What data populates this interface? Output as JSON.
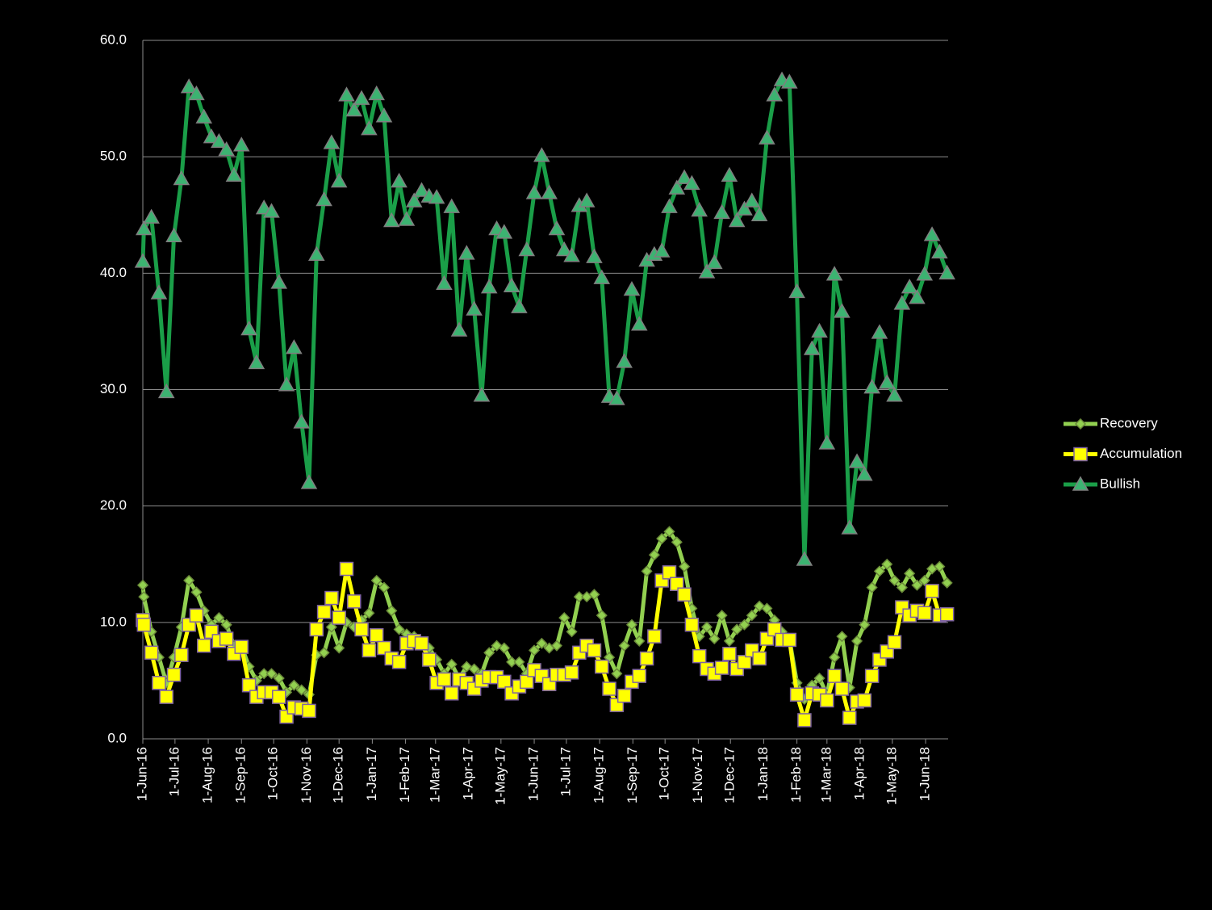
{
  "chart_data": {
    "type": "line",
    "x": [
      "2016-06-01",
      "2016-06-02",
      "2016-06-09",
      "2016-06-16",
      "2016-06-23",
      "2016-06-30",
      "2016-07-07",
      "2016-07-14",
      "2016-07-21",
      "2016-07-28",
      "2016-08-04",
      "2016-08-11",
      "2016-08-18",
      "2016-08-25",
      "2016-09-01",
      "2016-09-08",
      "2016-09-15",
      "2016-09-22",
      "2016-09-29",
      "2016-10-06",
      "2016-10-13",
      "2016-10-20",
      "2016-10-27",
      "2016-11-03",
      "2016-11-10",
      "2016-11-17",
      "2016-11-24",
      "2016-12-01",
      "2016-12-08",
      "2016-12-15",
      "2016-12-22",
      "2016-12-29",
      "2017-01-05",
      "2017-01-12",
      "2017-01-19",
      "2017-01-26",
      "2017-02-02",
      "2017-02-09",
      "2017-02-16",
      "2017-02-23",
      "2017-03-02",
      "2017-03-09",
      "2017-03-16",
      "2017-03-23",
      "2017-03-30",
      "2017-04-06",
      "2017-04-13",
      "2017-04-20",
      "2017-04-27",
      "2017-05-04",
      "2017-05-11",
      "2017-05-18",
      "2017-05-25",
      "2017-06-01",
      "2017-06-08",
      "2017-06-15",
      "2017-06-22",
      "2017-06-29",
      "2017-07-06",
      "2017-07-13",
      "2017-07-20",
      "2017-07-27",
      "2017-08-03",
      "2017-08-10",
      "2017-08-17",
      "2017-08-24",
      "2017-08-31",
      "2017-09-07",
      "2017-09-14",
      "2017-09-21",
      "2017-09-28",
      "2017-10-05",
      "2017-10-12",
      "2017-10-19",
      "2017-10-26",
      "2017-11-02",
      "2017-11-09",
      "2017-11-16",
      "2017-11-23",
      "2017-11-30",
      "2017-12-07",
      "2017-12-14",
      "2017-12-21",
      "2017-12-28",
      "2018-01-04",
      "2018-01-11",
      "2018-01-18",
      "2018-01-25",
      "2018-02-01",
      "2018-02-08",
      "2018-02-15",
      "2018-02-22",
      "2018-03-01",
      "2018-03-08",
      "2018-03-15",
      "2018-03-22",
      "2018-03-29",
      "2018-04-05",
      "2018-04-12",
      "2018-04-19",
      "2018-04-26",
      "2018-05-03",
      "2018-05-10",
      "2018-05-17",
      "2018-05-24",
      "2018-05-31",
      "2018-06-07",
      "2018-06-14",
      "2018-06-21"
    ],
    "series": [
      {
        "name": "Recovery",
        "color": "#92d050",
        "marker": "diamond",
        "values": [
          13.2,
          12.2,
          9.2,
          7.0,
          4.8,
          7.0,
          9.6,
          13.6,
          12.6,
          11.0,
          9.8,
          10.4,
          9.8,
          8.0,
          8.0,
          6.2,
          5.0,
          5.6,
          5.6,
          5.2,
          4.0,
          4.6,
          4.2,
          3.8,
          7.2,
          7.4,
          9.6,
          7.8,
          10.0,
          9.6,
          10.2,
          10.8,
          13.6,
          13.0,
          11.0,
          9.4,
          9.0,
          8.8,
          8.2,
          7.8,
          6.8,
          5.6,
          6.4,
          5.2,
          6.2,
          6.0,
          5.6,
          7.4,
          8.0,
          7.8,
          6.6,
          6.6,
          5.6,
          7.6,
          8.2,
          7.8,
          8.0,
          10.4,
          9.2,
          12.2,
          12.2,
          12.4,
          10.6,
          7.0,
          5.6,
          8.0,
          9.8,
          8.4,
          14.4,
          15.8,
          17.2,
          17.8,
          16.9,
          14.8,
          11.2,
          8.8,
          9.6,
          8.6,
          10.6,
          8.4,
          9.4,
          9.8,
          10.6,
          11.4,
          11.2,
          10.2,
          9.2,
          8.6,
          4.8,
          3.4,
          4.6,
          5.2,
          3.8,
          7.0,
          8.8,
          4.4,
          8.4,
          9.8,
          13.0,
          14.4,
          15.0,
          13.6,
          13.0,
          14.2,
          13.2,
          13.6,
          14.6,
          14.8,
          13.4
        ]
      },
      {
        "name": "Accumulation",
        "color": "#ffff00",
        "marker": "square",
        "values": [
          10.2,
          9.8,
          7.4,
          4.8,
          3.6,
          5.5,
          7.2,
          9.8,
          10.6,
          8.0,
          9.2,
          8.4,
          8.6,
          7.3,
          7.9,
          4.6,
          3.6,
          4.0,
          4.0,
          3.6,
          1.9,
          2.7,
          2.6,
          2.4,
          9.4,
          10.9,
          12.1,
          10.4,
          14.6,
          11.8,
          9.4,
          7.6,
          8.9,
          7.8,
          6.9,
          6.6,
          8.2,
          8.4,
          8.2,
          6.8,
          4.8,
          5.1,
          3.9,
          5.1,
          4.8,
          4.3,
          5.0,
          5.3,
          5.3,
          4.9,
          3.9,
          4.5,
          4.9,
          5.9,
          5.4,
          4.7,
          5.5,
          5.5,
          5.7,
          7.4,
          8.0,
          7.6,
          6.2,
          4.3,
          2.9,
          3.7,
          4.9,
          5.4,
          6.9,
          8.8,
          13.6,
          14.3,
          13.3,
          12.4,
          9.8,
          7.1,
          6.0,
          5.6,
          6.1,
          7.3,
          6.0,
          6.6,
          7.6,
          6.9,
          8.6,
          9.4,
          8.5,
          8.5,
          3.8,
          1.6,
          3.9,
          3.8,
          3.3,
          5.4,
          4.3,
          1.8,
          3.2,
          3.3,
          5.4,
          6.8,
          7.5,
          8.3,
          11.3,
          10.6,
          11.0,
          10.8,
          12.7,
          10.6,
          10.7
        ]
      },
      {
        "name": "Bullish",
        "color": "#1a9e48",
        "marker": "triangle",
        "values": [
          41.0,
          43.8,
          44.8,
          38.3,
          29.8,
          43.2,
          48.1,
          56.0,
          55.4,
          53.4,
          51.7,
          51.3,
          50.6,
          48.4,
          51.0,
          35.2,
          32.3,
          45.6,
          45.3,
          39.2,
          30.4,
          33.6,
          27.2,
          22.0,
          41.6,
          46.3,
          51.2,
          47.9,
          55.3,
          54.0,
          55.0,
          52.4,
          55.4,
          53.5,
          44.5,
          47.9,
          44.6,
          46.2,
          47.1,
          46.6,
          46.5,
          39.1,
          45.7,
          35.1,
          41.7,
          36.9,
          29.5,
          38.8,
          43.8,
          43.5,
          38.9,
          37.1,
          42.0,
          46.9,
          50.1,
          46.9,
          43.8,
          42.0,
          41.5,
          45.8,
          46.2,
          41.4,
          39.6,
          29.4,
          29.2,
          32.4,
          38.6,
          35.6,
          41.1,
          41.6,
          41.9,
          45.7,
          47.3,
          48.2,
          47.7,
          45.4,
          40.1,
          40.9,
          45.2,
          48.4,
          44.5,
          45.5,
          46.2,
          45.0,
          51.6,
          55.3,
          56.6,
          56.4,
          38.4,
          15.4,
          33.5,
          35.0,
          25.4,
          39.9,
          36.7,
          18.1,
          23.8,
          22.7,
          30.2,
          34.9,
          30.6,
          29.5,
          37.4,
          38.8,
          37.9,
          39.9,
          43.3,
          41.8,
          40.0
        ]
      }
    ],
    "xlim": [
      "2016-06-01",
      "2018-06-22"
    ],
    "xticks": [
      {
        "value": "2016-06-01",
        "label": "1-Jun-16"
      },
      {
        "value": "2016-07-01",
        "label": "1-Jul-16"
      },
      {
        "value": "2016-08-01",
        "label": "1-Aug-16"
      },
      {
        "value": "2016-09-01",
        "label": "1-Sep-16"
      },
      {
        "value": "2016-10-01",
        "label": "1-Oct-16"
      },
      {
        "value": "2016-11-01",
        "label": "1-Nov-16"
      },
      {
        "value": "2016-12-01",
        "label": "1-Dec-16"
      },
      {
        "value": "2017-01-01",
        "label": "1-Jan-17"
      },
      {
        "value": "2017-02-01",
        "label": "1-Feb-17"
      },
      {
        "value": "2017-03-01",
        "label": "1-Mar-17"
      },
      {
        "value": "2017-04-01",
        "label": "1-Apr-17"
      },
      {
        "value": "2017-05-01",
        "label": "1-May-17"
      },
      {
        "value": "2017-06-01",
        "label": "1-Jun-17"
      },
      {
        "value": "2017-07-01",
        "label": "1-Jul-17"
      },
      {
        "value": "2017-08-01",
        "label": "1-Aug-17"
      },
      {
        "value": "2017-09-01",
        "label": "1-Sep-17"
      },
      {
        "value": "2017-10-01",
        "label": "1-Oct-17"
      },
      {
        "value": "2017-11-01",
        "label": "1-Nov-17"
      },
      {
        "value": "2017-12-01",
        "label": "1-Dec-17"
      },
      {
        "value": "2018-01-01",
        "label": "1-Jan-18"
      },
      {
        "value": "2018-02-01",
        "label": "1-Feb-18"
      },
      {
        "value": "2018-03-01",
        "label": "1-Mar-18"
      },
      {
        "value": "2018-04-01",
        "label": "1-Apr-18"
      },
      {
        "value": "2018-05-01",
        "label": "1-May-18"
      },
      {
        "value": "2018-06-01",
        "label": "1-Jun-18"
      }
    ],
    "ylim": [
      0,
      60
    ],
    "yticks": [
      {
        "value": 0,
        "label": "0.0"
      },
      {
        "value": 10,
        "label": "10.0"
      },
      {
        "value": 20,
        "label": "20.0"
      },
      {
        "value": 30,
        "label": "30.0"
      },
      {
        "value": 40,
        "label": "40.0"
      },
      {
        "value": 50,
        "label": "50.0"
      },
      {
        "value": 60,
        "label": "60.0"
      }
    ],
    "grid": true,
    "legend": "right"
  }
}
